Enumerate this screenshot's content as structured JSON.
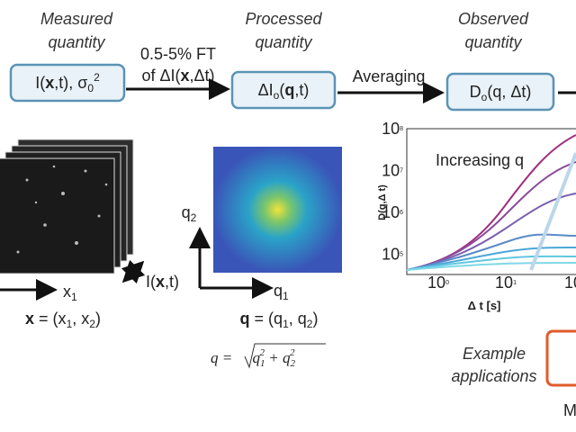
{
  "stages": [
    {
      "heading": [
        "Measured",
        "quantity"
      ],
      "box": [
        "I(",
        "x",
        ",t), σ",
        "0",
        "2"
      ]
    },
    {
      "heading": [
        "Processed",
        "quantity"
      ],
      "box": [
        "ΔI",
        "o",
        "(",
        "q",
        ",t)"
      ]
    },
    {
      "heading": [
        "Observed",
        "quantity"
      ],
      "box": [
        "D",
        "o",
        "(q, Δt)"
      ]
    }
  ],
  "arrows": [
    {
      "lines": [
        [
          "0.5-5% FT"
        ],
        [
          "of ΔI(",
          "x",
          ",Δt)"
        ]
      ]
    },
    {
      "lines": [
        [
          "Averaging"
        ]
      ]
    }
  ],
  "real_space": {
    "axis": [
      "x",
      "1"
    ],
    "definition": [
      "x",
      " = (x",
      "1",
      ", x",
      "2",
      ")"
    ],
    "time_axis": [
      "I(",
      "x",
      ",t)"
    ]
  },
  "fourier_space": {
    "axis_vertical": [
      "q",
      "2"
    ],
    "axis_horizontal": [
      "q",
      "1"
    ],
    "definition": [
      "q",
      " = (q",
      "1",
      ", q",
      "2",
      ")"
    ],
    "formula": [
      "q = ",
      "q",
      "1",
      "2",
      " + q",
      "2",
      "2"
    ]
  },
  "plot": {
    "annotation": "Increasing q",
    "ylabel": "D(q,Δ t)",
    "xlabel": "Δ t [s]",
    "yticks": [
      {
        "base": "10",
        "exp": "8"
      },
      {
        "base": "10",
        "exp": "7"
      },
      {
        "base": "10",
        "exp": "6"
      },
      {
        "base": "10",
        "exp": "5"
      }
    ],
    "xticks": [
      {
        "base": "10",
        "exp": "0"
      },
      {
        "base": "10",
        "exp": "1"
      },
      {
        "base": "10",
        "exp": ""
      }
    ]
  },
  "applications": {
    "heading": [
      "Example",
      "applications"
    ],
    "cut_label": "M"
  }
}
